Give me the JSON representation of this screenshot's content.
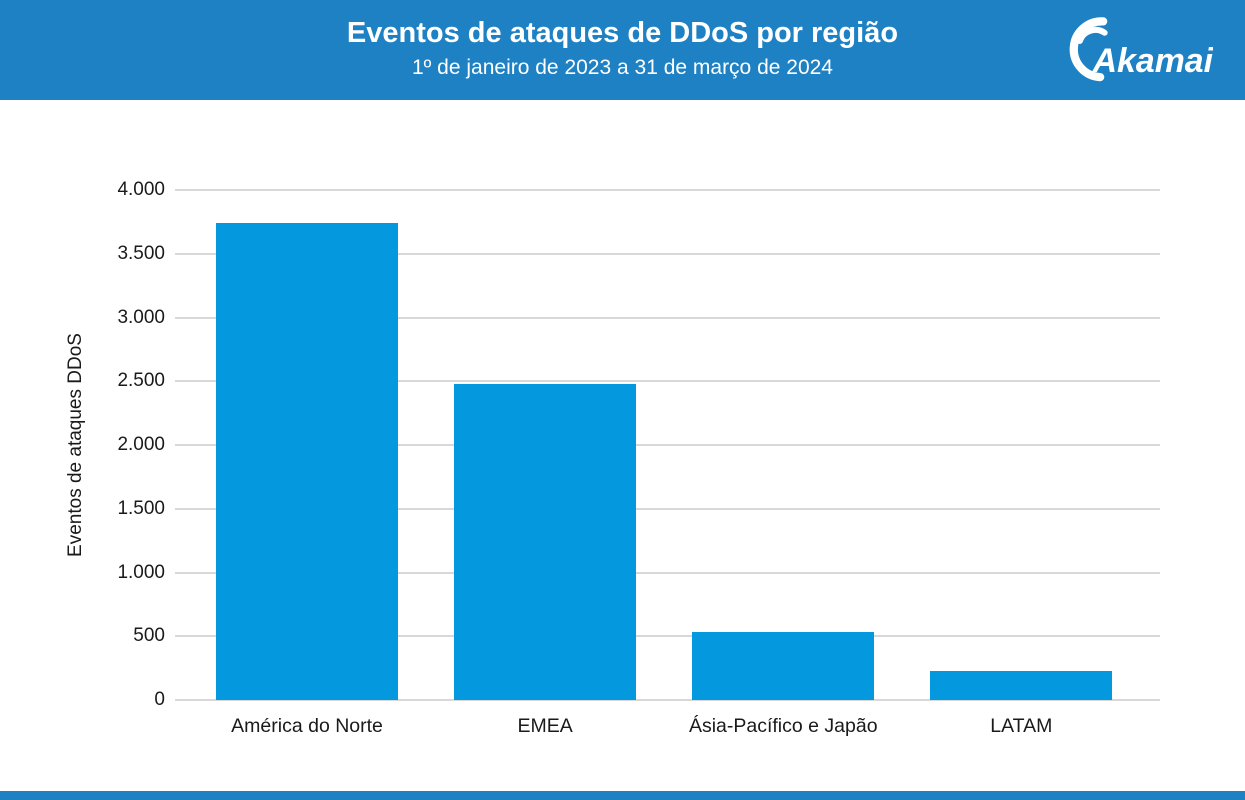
{
  "header": {
    "title": "Eventos de ataques de DDoS por região",
    "subtitle": "1º de janeiro de 2023 a 31 de março de 2024",
    "logo": "Akamai"
  },
  "colors": {
    "header_blue": "#1E81C4",
    "bar_blue": "#0499DF",
    "gridline_gray": "#D8D8D8",
    "text_black": "#1A1A1A",
    "header_text_white": "#FFFFFF"
  },
  "chart_data": {
    "type": "bar",
    "title": "Eventos de ataques de DDoS por região",
    "subtitle": "1º de janeiro de 2023 a 31 de março de 2024",
    "categories": [
      "América do Norte",
      "EMEA",
      "Ásia-Pacífico e Japão",
      "LATAM"
    ],
    "values": [
      3740,
      2480,
      535,
      230
    ],
    "xlabel": "",
    "ylabel": "Eventos de ataques DDoS",
    "ylim": [
      0,
      4000
    ],
    "ytick_interval": 500,
    "yticks": [
      {
        "value": 0,
        "label": "0"
      },
      {
        "value": 500,
        "label": "500"
      },
      {
        "value": 1000,
        "label": "1.000"
      },
      {
        "value": 1500,
        "label": "1.500"
      },
      {
        "value": 2000,
        "label": "2.000"
      },
      {
        "value": 2500,
        "label": "2.500"
      },
      {
        "value": 3000,
        "label": "3.000"
      },
      {
        "value": 3500,
        "label": "3.500"
      },
      {
        "value": 4000,
        "label": "4.000"
      }
    ],
    "grid": "horizontal",
    "legend": "none",
    "bar_color": "#0499DF"
  }
}
